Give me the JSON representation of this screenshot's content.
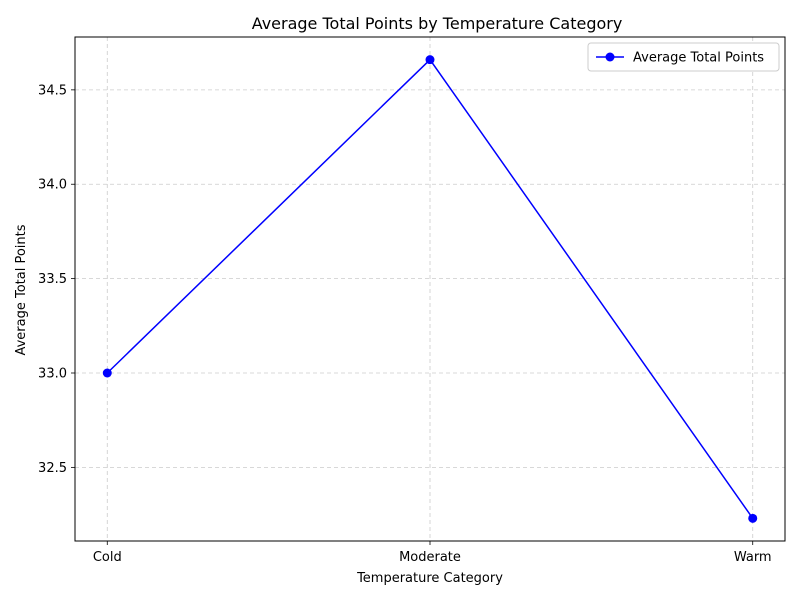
{
  "chart_data": {
    "type": "line",
    "title": "Average Total Points by Temperature Category",
    "xlabel": "Temperature Category",
    "ylabel": "Average Total Points",
    "categories": [
      "Cold",
      "Moderate",
      "Warm"
    ],
    "series": [
      {
        "name": "Average Total Points",
        "values": [
          33.0,
          34.66,
          32.23
        ],
        "color": "#0000ff",
        "marker": "circle"
      }
    ],
    "ylim": [
      32.11,
      34.78
    ],
    "yticks": [
      32.5,
      33.0,
      33.5,
      34.0,
      34.5
    ],
    "ytick_labels": [
      "32.5",
      "33.0",
      "33.5",
      "34.0",
      "34.5"
    ],
    "grid": true,
    "grid_style": "dashed",
    "legend_position": "top-right"
  }
}
